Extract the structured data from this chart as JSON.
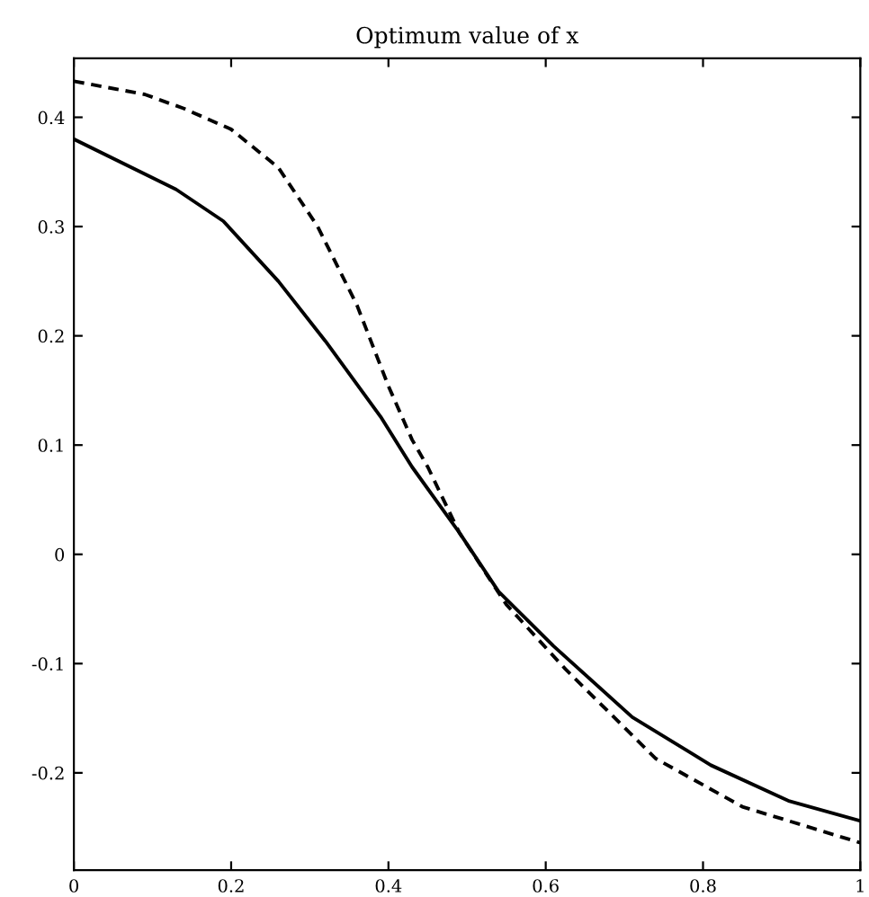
{
  "chart_data": {
    "type": "line",
    "title": "Optimum value of x",
    "xlim": [
      0,
      1
    ],
    "xticks": [
      0,
      0.2,
      0.4,
      0.6,
      0.8,
      1
    ],
    "ylim": [
      -0.289,
      0.454
    ],
    "yticks": [
      -0.2,
      -0.1,
      0,
      0.1,
      0.2,
      0.3,
      0.4
    ],
    "series": [
      {
        "color": "#000000",
        "line_style": "solid",
        "x": [
          0,
          0.13,
          0.19,
          0.26,
          0.32,
          0.39,
          0.43,
          0.49,
          0.54,
          0.61,
          0.71,
          0.81,
          0.91,
          1
        ],
        "values": [
          0.38,
          0.334,
          0.305,
          0.25,
          0.195,
          0.126,
          0.08,
          0.02,
          -0.034,
          -0.084,
          -0.149,
          -0.193,
          -0.226,
          -0.244
        ]
      },
      {
        "color": "#000000",
        "line_style": "dashed",
        "x": [
          0,
          0.09,
          0.14,
          0.2,
          0.26,
          0.31,
          0.36,
          0.4,
          0.43,
          0.45,
          0.49,
          0.55,
          0.625,
          0.74,
          0.85,
          1
        ],
        "values": [
          0.433,
          0.421,
          0.408,
          0.389,
          0.354,
          0.3,
          0.228,
          0.154,
          0.105,
          0.08,
          0.02,
          -0.046,
          -0.105,
          -0.187,
          -0.231,
          -0.264
        ]
      }
    ]
  }
}
